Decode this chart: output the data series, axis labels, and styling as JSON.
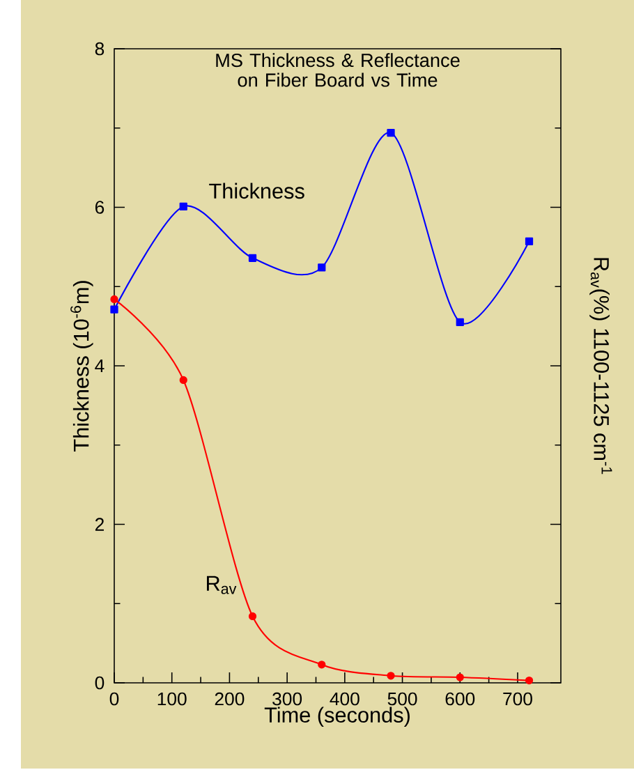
{
  "chart_data": {
    "type": "line",
    "title": "MS Thickness & Reflectance on Fiber Board vs Time",
    "xlabel": "Time (seconds)",
    "ylabel": "Thickness (10$^{-6}$m)",
    "y2label": "R$_{av}$(%) 1100-1125 cm$^{-1}$",
    "x": [
      0,
      120,
      240,
      360,
      480,
      600,
      720
    ],
    "series": [
      {
        "name": "Thickness",
        "color": "#0000ff",
        "marker": "square",
        "values": [
          4.71,
          6.01,
          5.36,
          5.24,
          6.94,
          4.55,
          5.57
        ]
      },
      {
        "name": "R$_{av}$",
        "color": "#ff0000",
        "marker": "circle",
        "values": [
          4.84,
          3.82,
          0.84,
          0.23,
          0.09,
          0.07,
          0.03
        ]
      }
    ],
    "xlim": [
      0,
      775
    ],
    "ylim": [
      0,
      8
    ],
    "xticks": [
      0,
      100,
      200,
      300,
      400,
      500,
      600,
      700
    ],
    "yticks": [
      0,
      2,
      4,
      6,
      8
    ],
    "line_style": "solid"
  }
}
